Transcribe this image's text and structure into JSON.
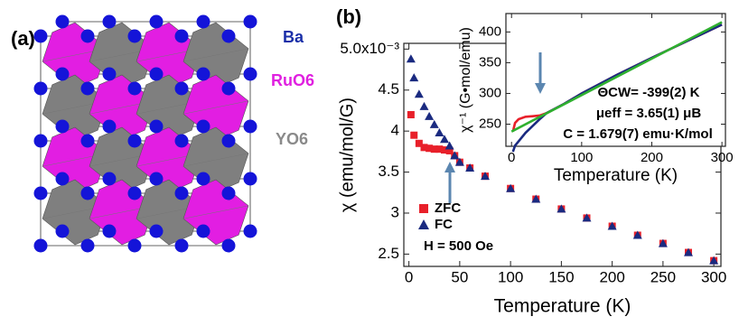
{
  "structure": {
    "panel_label": "(a)",
    "labels": [
      "Ba",
      "RuO6",
      "YO6"
    ],
    "label_colors": [
      "#1a2fa8",
      "#e020e0",
      "#8a8a8a"
    ]
  },
  "chart_data": [
    {
      "type": "scatter",
      "panel_label": "(b)",
      "x_label": "Temperature (K)",
      "y_label": "χ (emu/mol/G)",
      "annotations": [
        "H = 500 Oe"
      ],
      "legend": "lower left",
      "xlim": [
        -5,
        307
      ],
      "ylim": [
        2.35,
        5.07
      ],
      "xticks": [
        0,
        50,
        100,
        150,
        200,
        250,
        300
      ],
      "yticks": [
        2.5,
        3.0,
        3.5,
        4.0,
        4.5,
        {
          "value": 5.0,
          "label": "5.0x10⁻³"
        }
      ],
      "x": [
        2,
        5,
        10,
        15,
        20,
        25,
        30,
        35,
        40,
        45,
        50,
        60,
        75,
        100,
        125,
        150,
        175,
        200,
        225,
        250,
        275,
        300
      ],
      "series": [
        {
          "name": "ZFC",
          "color": "#e8202a",
          "marker": "square",
          "values": [
            4.2,
            3.95,
            3.85,
            3.8,
            3.79,
            3.78,
            3.78,
            3.77,
            3.76,
            3.7,
            3.62,
            3.55,
            3.45,
            3.3,
            3.17,
            3.05,
            2.94,
            2.84,
            2.73,
            2.63,
            2.52,
            2.42
          ]
        },
        {
          "name": "FC",
          "color": "#1a2a80",
          "marker": "triangle",
          "values": [
            4.88,
            4.65,
            4.45,
            4.3,
            4.18,
            4.08,
            3.98,
            3.9,
            3.82,
            3.7,
            3.62,
            3.55,
            3.45,
            3.3,
            3.17,
            3.05,
            2.94,
            2.84,
            2.73,
            2.63,
            2.52,
            2.42
          ]
        }
      ]
    },
    {
      "type": "line",
      "x_label": "Temperature (K)",
      "y_label": "χ⁻¹ (G•mol/emu)",
      "annotations": [
        "ΘCW= -399(2) K",
        "μeff = 3.65(1) μB",
        "C = 1.679(7) emu·K/mol"
      ],
      "xlim": [
        -8,
        305
      ],
      "ylim": [
        214,
        430
      ],
      "xticks": [
        0,
        100,
        200,
        300
      ],
      "yticks": [
        250,
        300,
        350,
        400
      ],
      "series": [
        {
          "color": "#e8202a",
          "x": [
            2,
            5,
            10,
            20,
            30,
            40,
            50,
            75,
            100,
            150,
            200,
            250,
            300
          ],
          "values": [
            238,
            252,
            258,
            262,
            263,
            264,
            268,
            283,
            300,
            330,
            358,
            385,
            412
          ]
        },
        {
          "color": "#1a2a80",
          "x": [
            2,
            5,
            10,
            20,
            30,
            40,
            50,
            75,
            100,
            150,
            200,
            250,
            300
          ],
          "values": [
            205,
            215,
            222,
            236,
            247,
            258,
            268,
            283,
            300,
            330,
            358,
            385,
            412
          ]
        },
        {
          "color": "#2fb02f",
          "x": [
            0,
            300
          ],
          "values": [
            238,
            416
          ]
        }
      ]
    }
  ]
}
